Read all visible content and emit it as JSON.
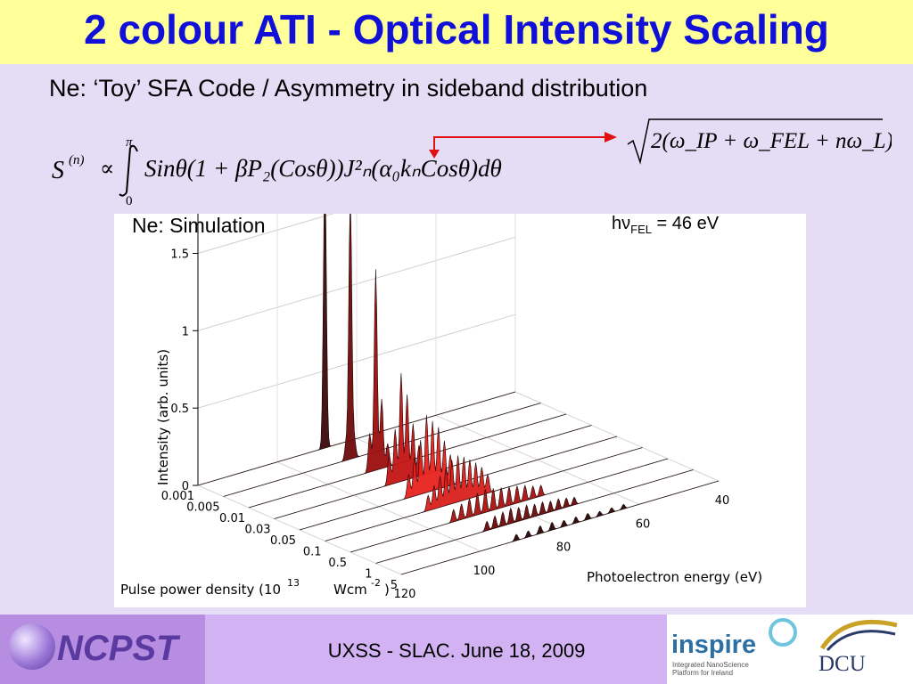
{
  "slide": {
    "title": "2 colour ATI - Optical Intensity Scaling",
    "subtitle": "Ne: ‘Toy’ SFA Code / Asymmetry in sideband distribution",
    "footer": "UXSS - SLAC. June 18, 2009"
  },
  "logos": {
    "left": "NCPST",
    "right_main": "inspire",
    "right_small_1": "Integrated NanoScience",
    "right_small_2": "Platform for Ireland",
    "right_university": "DCU"
  },
  "equation": {
    "main_lhs": "S",
    "main_sup": "(n)",
    "proportional": "∝",
    "int_upper": "π",
    "int_lower": "0",
    "main_body": "Sinθ(1 + βP₂(Cosθ))J²ₙ(α₀kₙCosθ)dθ",
    "box_expr": "2(ω_IP + ω_FEL + nω_L)"
  },
  "chart_data": {
    "type": "3d-waterfall",
    "annotation_left": "Ne: Simulation",
    "annotation_right": "hν",
    "annotation_right_sub": "FEL",
    "annotation_right_value": " = 46 eV",
    "zlabel": "Intensity (arb. units)",
    "ylabel": "Pulse power density (10",
    "ylabel_exp": "13",
    "ylabel_unit": "Wcm",
    "ylabel_unit_exp": "-2",
    "ylabel_end": ")",
    "xlabel": "Photoelectron energy (eV)",
    "z_ticks": [
      "0",
      "0.5",
      "1",
      "1.5"
    ],
    "y_ticks": [
      "0.001",
      "0.005",
      "0.01",
      "0.03",
      "0.05",
      "0.1",
      "0.5",
      "1",
      "5"
    ],
    "x_ticks": [
      "120",
      "100",
      "80",
      "60",
      "40"
    ],
    "x_range": [
      40,
      120
    ],
    "z_range": [
      0,
      1.9
    ],
    "series": [
      {
        "power_density": 0.001,
        "color": "#3a0a0a",
        "peaks": [
          {
            "energy": 88,
            "height": 1.8
          }
        ]
      },
      {
        "power_density": 0.005,
        "color": "#6e0b0b",
        "peaks": [
          {
            "energy": 88,
            "height": 1.7
          },
          {
            "energy": 87,
            "height": 0.12
          },
          {
            "energy": 89,
            "height": 0.12
          }
        ]
      },
      {
        "power_density": 0.01,
        "color": "#9c0e0e",
        "peaks": [
          {
            "energy": 88,
            "height": 1.3
          },
          {
            "energy": 86.5,
            "height": 0.45
          },
          {
            "energy": 89.5,
            "height": 0.25
          },
          {
            "energy": 85,
            "height": 0.15
          }
        ]
      },
      {
        "power_density": 0.03,
        "color": "#c41414",
        "peaks": [
          {
            "energy": 88,
            "height": 0.7
          },
          {
            "energy": 86.5,
            "height": 0.55
          },
          {
            "energy": 89.5,
            "height": 0.35
          },
          {
            "energy": 85,
            "height": 0.35
          },
          {
            "energy": 91,
            "height": 0.2
          },
          {
            "energy": 83.5,
            "height": 0.2
          }
        ]
      },
      {
        "power_density": 0.05,
        "color": "#e8221e",
        "peaks": [
          {
            "energy": 88,
            "height": 0.5
          },
          {
            "energy": 86.5,
            "height": 0.45
          },
          {
            "energy": 85,
            "height": 0.4
          },
          {
            "energy": 89.5,
            "height": 0.35
          },
          {
            "energy": 83.5,
            "height": 0.3
          },
          {
            "energy": 91,
            "height": 0.25
          },
          {
            "energy": 82,
            "height": 0.2
          },
          {
            "energy": 92.5,
            "height": 0.15
          }
        ]
      },
      {
        "power_density": 0.1,
        "color": "#d8201c",
        "peaks": [
          {
            "energy": 88,
            "height": 0.28
          },
          {
            "energy": 86.5,
            "height": 0.3
          },
          {
            "energy": 85,
            "height": 0.28
          },
          {
            "energy": 83.5,
            "height": 0.25
          },
          {
            "energy": 89.5,
            "height": 0.24
          },
          {
            "energy": 91,
            "height": 0.2
          },
          {
            "energy": 82,
            "height": 0.22
          },
          {
            "energy": 80.5,
            "height": 0.18
          },
          {
            "energy": 92.5,
            "height": 0.15
          },
          {
            "energy": 79,
            "height": 0.12
          },
          {
            "energy": 94,
            "height": 0.1
          }
        ]
      },
      {
        "power_density": 0.5,
        "color": "#a8120f",
        "peaks": [
          {
            "energy": 88,
            "height": 0.14
          },
          {
            "energy": 86,
            "height": 0.15
          },
          {
            "energy": 84,
            "height": 0.14
          },
          {
            "energy": 82,
            "height": 0.13
          },
          {
            "energy": 80,
            "height": 0.12
          },
          {
            "energy": 78,
            "height": 0.11
          },
          {
            "energy": 76,
            "height": 0.1
          },
          {
            "energy": 90,
            "height": 0.12
          },
          {
            "energy": 92,
            "height": 0.1
          },
          {
            "energy": 94,
            "height": 0.08
          },
          {
            "energy": 74,
            "height": 0.08
          },
          {
            "energy": 72,
            "height": 0.07
          }
        ]
      },
      {
        "power_density": 1,
        "color": "#6a0808",
        "peaks": [
          {
            "energy": 88,
            "height": 0.09
          },
          {
            "energy": 86,
            "height": 0.1
          },
          {
            "energy": 84,
            "height": 0.09
          },
          {
            "energy": 82,
            "height": 0.09
          },
          {
            "energy": 80,
            "height": 0.08
          },
          {
            "energy": 78,
            "height": 0.08
          },
          {
            "energy": 76,
            "height": 0.07
          },
          {
            "energy": 74,
            "height": 0.07
          },
          {
            "energy": 72,
            "height": 0.06
          },
          {
            "energy": 90,
            "height": 0.08
          },
          {
            "energy": 92,
            "height": 0.06
          },
          {
            "energy": 70,
            "height": 0.05
          }
        ]
      },
      {
        "power_density": 5,
        "color": "#2a0505",
        "peaks": [
          {
            "energy": 88,
            "height": 0.04
          },
          {
            "energy": 85,
            "height": 0.05
          },
          {
            "energy": 82,
            "height": 0.05
          },
          {
            "energy": 79,
            "height": 0.04
          },
          {
            "energy": 76,
            "height": 0.04
          },
          {
            "energy": 73,
            "height": 0.04
          },
          {
            "energy": 70,
            "height": 0.03
          },
          {
            "energy": 91,
            "height": 0.04
          },
          {
            "energy": 67,
            "height": 0.03
          },
          {
            "energy": 64,
            "height": 0.03
          }
        ]
      }
    ]
  }
}
